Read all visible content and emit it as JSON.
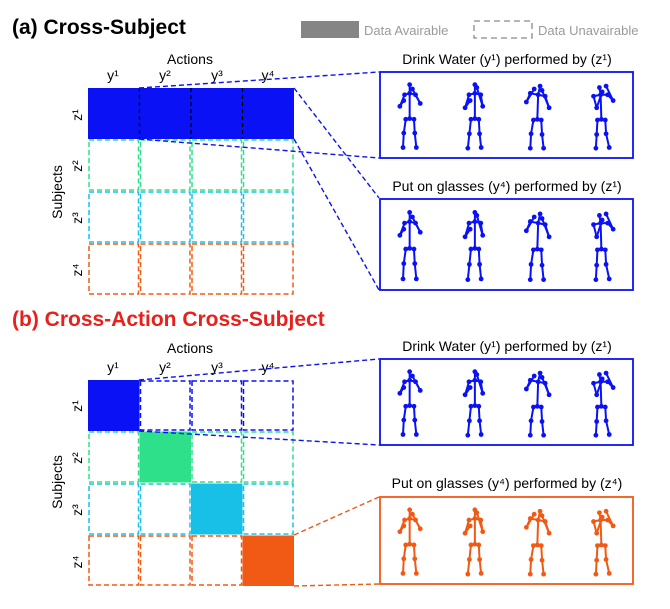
{
  "legend": {
    "available": "Data Avairable",
    "unavailable": "Data Unavairable"
  },
  "panel_a": {
    "title": "(a) Cross-Subject",
    "actions_label": "Actions",
    "subjects_label": "Subjects",
    "caption_top": "Drink Water (y¹) performed by (z¹)",
    "caption_bottom": "Put on glasses (y⁴) performed by (z¹)",
    "actions": [
      "y¹",
      "y²",
      "y³",
      "y⁴"
    ],
    "subjects": [
      "z¹",
      "z²",
      "z³",
      "z⁴"
    ]
  },
  "panel_b": {
    "title": "(b) Cross-Action Cross-Subject",
    "actions_label": "Actions",
    "subjects_label": "Subjects",
    "caption_top": "Drink Water (y¹) performed by (z¹)",
    "caption_bottom": "Put on glasses (y⁴) performed by (z⁴)",
    "actions": [
      "y¹",
      "y²",
      "y³",
      "y⁴"
    ],
    "subjects": [
      "z¹",
      "z²",
      "z³",
      "z⁴"
    ]
  },
  "colors": {
    "title_a": "#000000",
    "title_b": "#e8201c",
    "z1": "#0a12f5",
    "z2": "#2ee08a",
    "z3": "#18c0e8",
    "z4": "#f05a14",
    "legend_fill": "#858585"
  }
}
